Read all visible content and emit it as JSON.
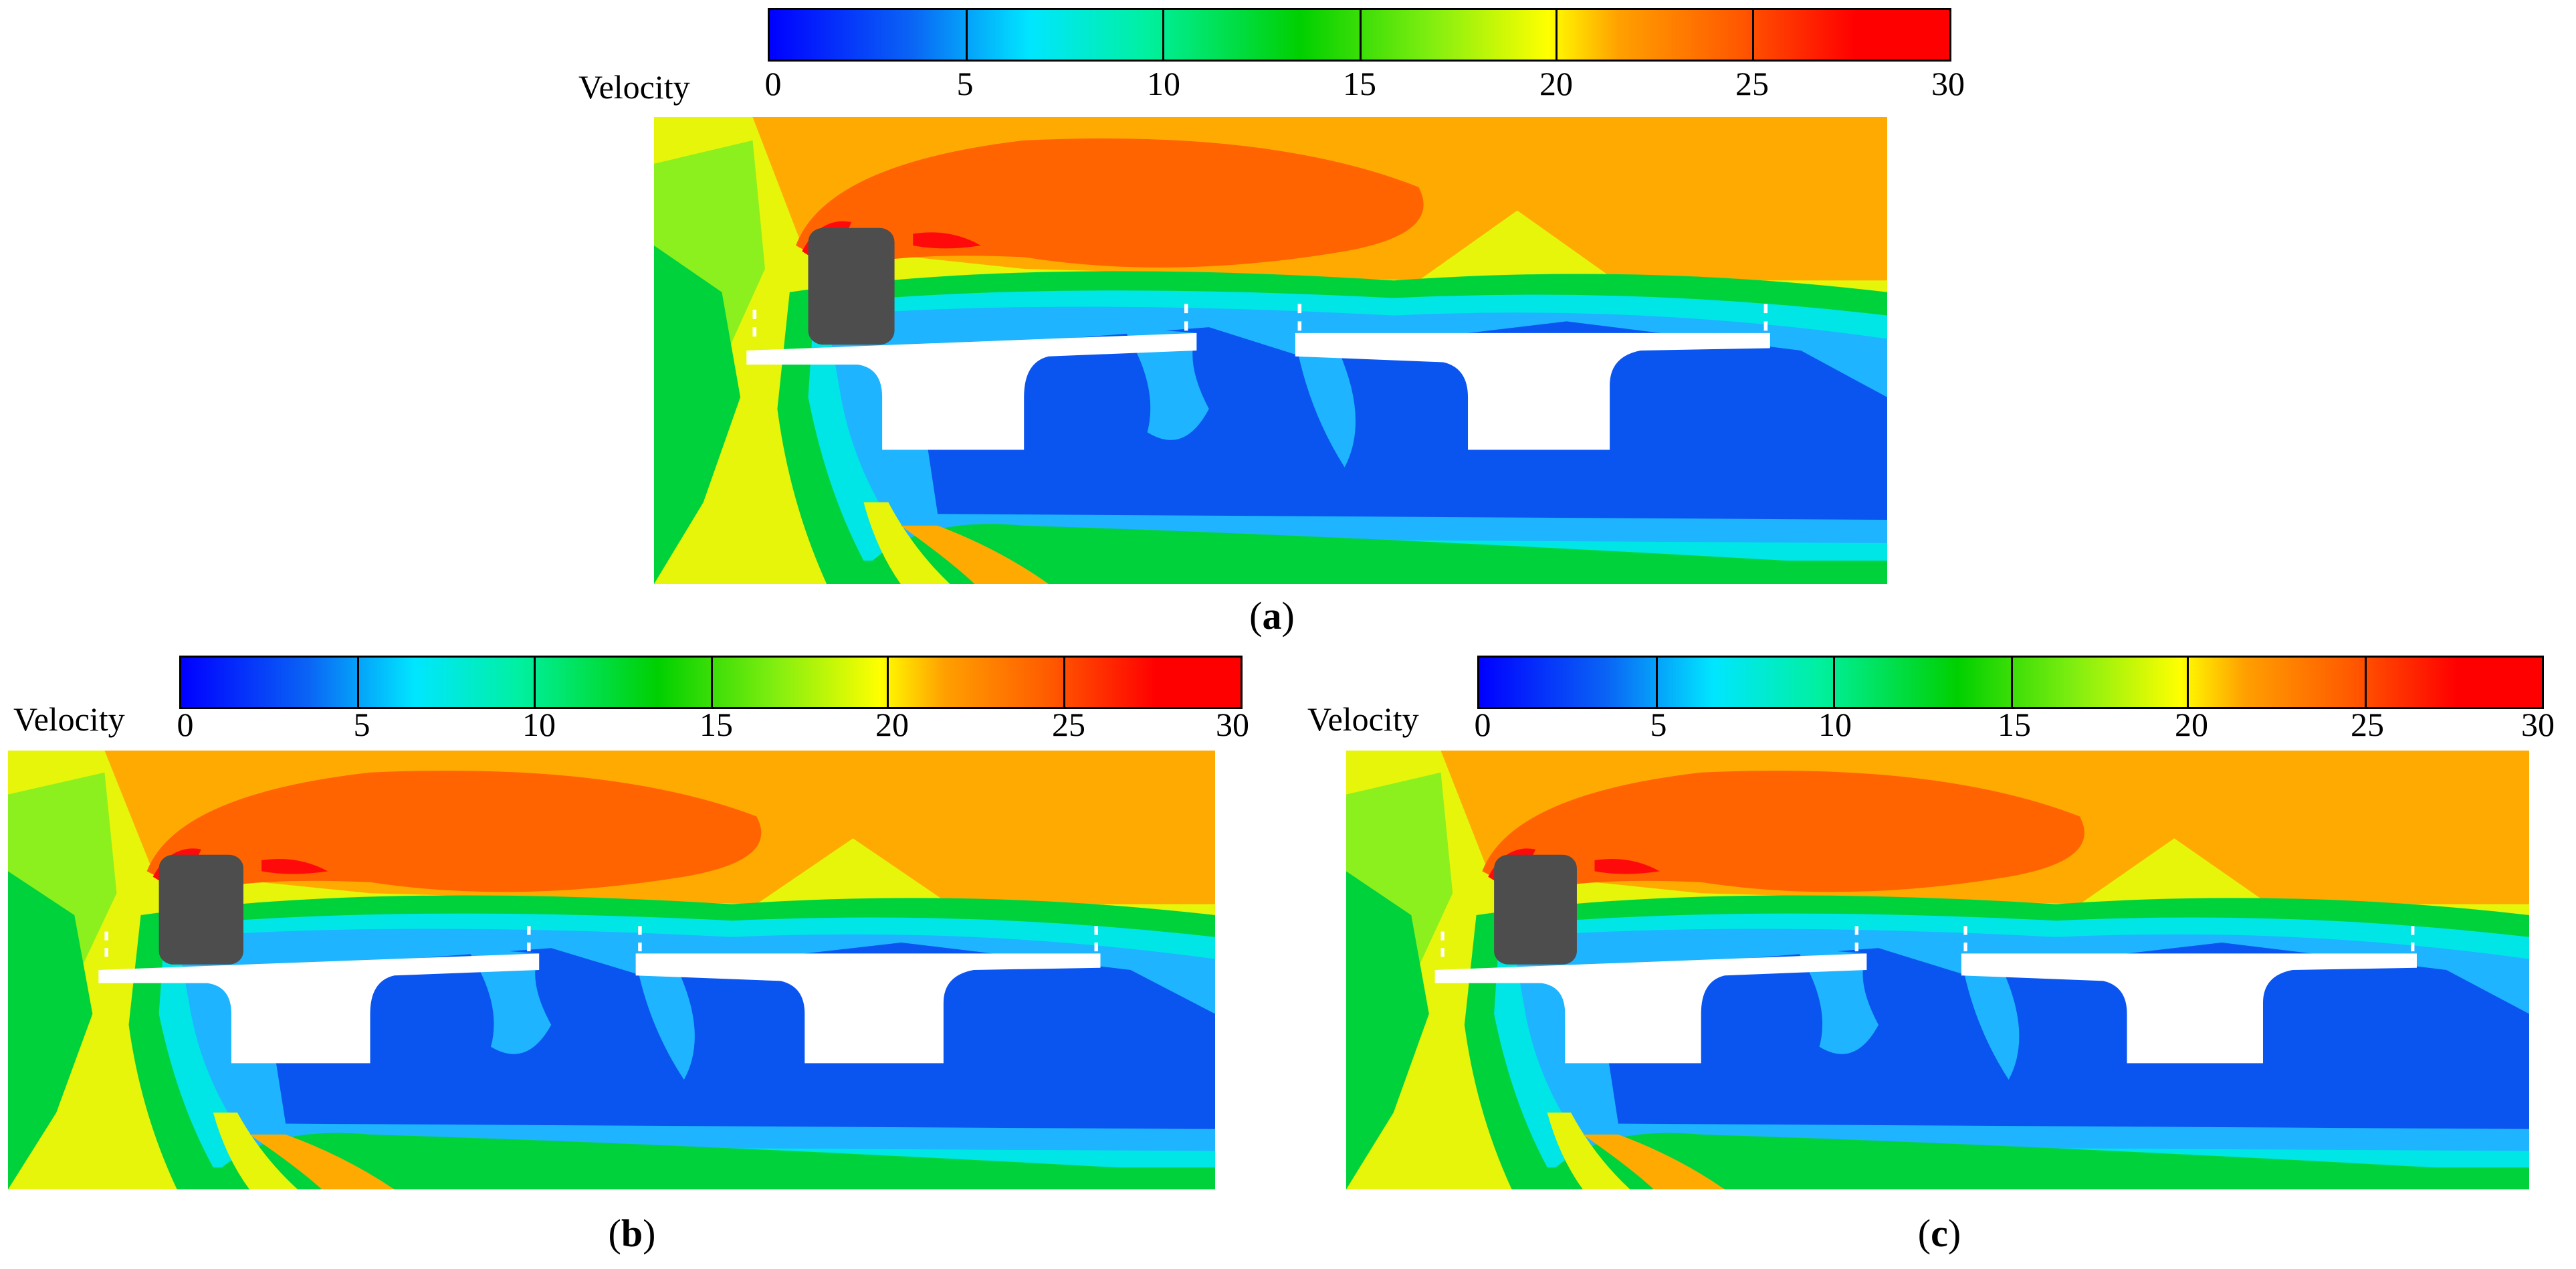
{
  "colorbar": {
    "label": "Velocity",
    "ticks": [
      "0",
      "5",
      "10",
      "15",
      "20",
      "25",
      "30"
    ],
    "range": [
      0,
      30
    ]
  },
  "panels": [
    {
      "id": "a",
      "caption_open": "(",
      "caption_letter": "a",
      "caption_close": ")"
    },
    {
      "id": "b",
      "caption_open": "(",
      "caption_letter": "b",
      "caption_close": ")"
    },
    {
      "id": "c",
      "caption_open": "(",
      "caption_letter": "c",
      "caption_close": ")"
    }
  ],
  "colors": {
    "blue": "#0a55f0",
    "light_blue": "#1eb4ff",
    "cyan": "#00e6e6",
    "green": "#00d23c",
    "lime": "#8cf01e",
    "yellow": "#e6f50a",
    "orange": "#ffaa00",
    "dark_orange": "#ff6400",
    "red": "#ff0a0a",
    "vehicle": "#4d4d4d",
    "deck": "#ffffff"
  }
}
